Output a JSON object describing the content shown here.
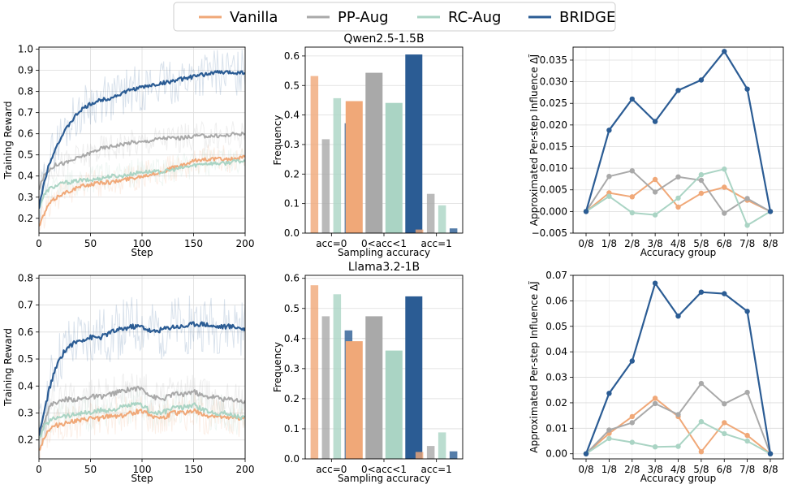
{
  "legend": {
    "entries": [
      {
        "name": "Vanilla",
        "color": "#f0a878"
      },
      {
        "name": "PP-Aug",
        "color": "#a9a9a9"
      },
      {
        "name": "RC-Aug",
        "color": "#aad4c4"
      },
      {
        "name": "BRIDGE",
        "color": "#2b5c94"
      }
    ]
  },
  "chart_data": [
    {
      "id": "reward-qwen",
      "type": "line",
      "title": "",
      "xlabel": "Step",
      "ylabel": "Training Reward",
      "xlim": [
        0,
        200
      ],
      "ylim": [
        0.13,
        1.01
      ],
      "xticks": [
        0,
        50,
        100,
        150,
        200
      ],
      "yticks": [
        0.2,
        0.3,
        0.4,
        0.5,
        0.6,
        0.7,
        0.8,
        0.9,
        1.0
      ],
      "ytick_labels": [
        "0.2",
        "0.3",
        "0.4",
        "0.5",
        "0.6",
        "0.7",
        "0.8",
        "0.9",
        "1.0"
      ],
      "grid": true,
      "x": [
        0,
        5,
        10,
        15,
        20,
        25,
        30,
        40,
        50,
        60,
        70,
        80,
        90,
        100,
        110,
        120,
        130,
        140,
        150,
        160,
        170,
        180,
        190,
        200
      ],
      "series": [
        {
          "name": "Vanilla",
          "values": [
            0.16,
            0.22,
            0.27,
            0.29,
            0.31,
            0.32,
            0.33,
            0.35,
            0.36,
            0.37,
            0.37,
            0.38,
            0.39,
            0.4,
            0.41,
            0.42,
            0.44,
            0.45,
            0.47,
            0.48,
            0.48,
            0.48,
            0.48,
            0.49
          ]
        },
        {
          "name": "PP-Aug",
          "values": [
            0.34,
            0.4,
            0.43,
            0.45,
            0.46,
            0.46,
            0.47,
            0.49,
            0.51,
            0.53,
            0.54,
            0.55,
            0.56,
            0.56,
            0.57,
            0.58,
            0.58,
            0.58,
            0.59,
            0.59,
            0.59,
            0.59,
            0.6,
            0.6
          ]
        },
        {
          "name": "RC-Aug",
          "values": [
            0.25,
            0.31,
            0.34,
            0.35,
            0.36,
            0.37,
            0.37,
            0.38,
            0.38,
            0.39,
            0.4,
            0.4,
            0.41,
            0.42,
            0.42,
            0.42,
            0.43,
            0.44,
            0.45,
            0.46,
            0.46,
            0.46,
            0.47,
            0.47
          ]
        },
        {
          "name": "BRIDGE",
          "values": [
            0.25,
            0.37,
            0.46,
            0.52,
            0.57,
            0.61,
            0.65,
            0.71,
            0.74,
            0.76,
            0.77,
            0.79,
            0.81,
            0.82,
            0.83,
            0.84,
            0.85,
            0.86,
            0.87,
            0.88,
            0.89,
            0.89,
            0.89,
            0.89
          ]
        }
      ]
    },
    {
      "id": "freq-qwen",
      "type": "bar",
      "title": "Qwen2.5-1.5B",
      "xlabel": "Sampling accuracy",
      "ylabel": "Frequency",
      "ylim": [
        0,
        0.63
      ],
      "yticks": [
        0.0,
        0.1,
        0.2,
        0.3,
        0.4,
        0.5,
        0.6
      ],
      "ytick_labels": [
        "0.0",
        "0.1",
        "0.2",
        "0.3",
        "0.4",
        "0.5",
        "0.6"
      ],
      "grid": true,
      "categories": [
        "acc=0",
        "0<acc<1",
        "acc=1"
      ],
      "series": [
        {
          "name": "Vanilla",
          "values": [
            0.532,
            0.447,
            0.012
          ]
        },
        {
          "name": "PP-Aug",
          "values": [
            0.318,
            0.543,
            0.133
          ]
        },
        {
          "name": "RC-Aug",
          "values": [
            0.457,
            0.441,
            0.094
          ]
        },
        {
          "name": "BRIDGE",
          "values": [
            0.372,
            0.605,
            0.016
          ]
        }
      ]
    },
    {
      "id": "influence-qwen",
      "type": "line",
      "title": "",
      "xlabel": "Accuracy group",
      "ylabel": "Approximated Per-step Influence ΔJ̃",
      "ylim": [
        -0.005,
        0.038
      ],
      "yticks": [
        -0.005,
        0.0,
        0.005,
        0.01,
        0.015,
        0.02,
        0.025,
        0.03,
        0.035
      ],
      "ytick_labels": [
        "−0.005",
        "0.000",
        "0.005",
        "0.010",
        "0.015",
        "0.020",
        "0.025",
        "0.030",
        "0.035"
      ],
      "grid": true,
      "categories": [
        "0/8",
        "1/8",
        "2/8",
        "3/8",
        "4/8",
        "5/8",
        "6/8",
        "7/8",
        "8/8"
      ],
      "series": [
        {
          "name": "Vanilla",
          "values": [
            0.0,
            0.0043,
            0.0034,
            0.0074,
            0.001,
            0.0042,
            0.0056,
            0.0026,
            0.0
          ]
        },
        {
          "name": "PP-Aug",
          "values": [
            0.0,
            0.0081,
            0.0094,
            0.0045,
            0.008,
            0.0072,
            -0.0004,
            0.003,
            0.0
          ]
        },
        {
          "name": "RC-Aug",
          "values": [
            0.0,
            0.0035,
            -0.0003,
            -0.0008,
            0.0031,
            0.0085,
            0.0098,
            -0.0032,
            0.0
          ]
        },
        {
          "name": "BRIDGE",
          "values": [
            0.0,
            0.0188,
            0.026,
            0.0208,
            0.028,
            0.0304,
            0.037,
            0.0283,
            0.0
          ]
        }
      ]
    },
    {
      "id": "reward-llama",
      "type": "line",
      "title": "",
      "xlabel": "Step",
      "ylabel": "Training Reward",
      "xlim": [
        0,
        200
      ],
      "ylim": [
        0.13,
        0.81
      ],
      "xticks": [
        0,
        50,
        100,
        150,
        200
      ],
      "yticks": [
        0.2,
        0.3,
        0.4,
        0.5,
        0.6,
        0.7,
        0.8
      ],
      "ytick_labels": [
        "0.2",
        "0.3",
        "0.4",
        "0.5",
        "0.6",
        "0.7",
        "0.8"
      ],
      "grid": true,
      "x": [
        0,
        5,
        10,
        15,
        20,
        25,
        30,
        40,
        50,
        60,
        70,
        80,
        90,
        100,
        110,
        120,
        130,
        140,
        150,
        160,
        170,
        180,
        190,
        200
      ],
      "series": [
        {
          "name": "Vanilla",
          "values": [
            0.16,
            0.21,
            0.24,
            0.25,
            0.26,
            0.26,
            0.27,
            0.27,
            0.28,
            0.28,
            0.29,
            0.29,
            0.3,
            0.31,
            0.29,
            0.28,
            0.3,
            0.3,
            0.31,
            0.29,
            0.29,
            0.28,
            0.28,
            0.28
          ]
        },
        {
          "name": "PP-Aug",
          "values": [
            0.21,
            0.27,
            0.32,
            0.34,
            0.34,
            0.35,
            0.35,
            0.35,
            0.36,
            0.36,
            0.37,
            0.38,
            0.39,
            0.39,
            0.36,
            0.35,
            0.37,
            0.37,
            0.38,
            0.36,
            0.36,
            0.35,
            0.35,
            0.34
          ]
        },
        {
          "name": "RC-Aug",
          "values": [
            0.2,
            0.25,
            0.27,
            0.28,
            0.29,
            0.29,
            0.29,
            0.3,
            0.3,
            0.31,
            0.31,
            0.32,
            0.33,
            0.33,
            0.3,
            0.3,
            0.32,
            0.32,
            0.33,
            0.31,
            0.3,
            0.3,
            0.29,
            0.28
          ]
        },
        {
          "name": "BRIDGE",
          "values": [
            0.22,
            0.3,
            0.39,
            0.45,
            0.5,
            0.53,
            0.55,
            0.57,
            0.58,
            0.58,
            0.6,
            0.61,
            0.62,
            0.62,
            0.6,
            0.61,
            0.62,
            0.62,
            0.63,
            0.63,
            0.62,
            0.62,
            0.62,
            0.61
          ]
        }
      ]
    },
    {
      "id": "freq-llama",
      "type": "bar",
      "title": "Llama3.2-1B",
      "xlabel": "Sampling accuracy",
      "ylabel": "Frequency",
      "ylim": [
        0,
        0.61
      ],
      "yticks": [
        0.0,
        0.1,
        0.2,
        0.3,
        0.4,
        0.5,
        0.6
      ],
      "ytick_labels": [
        "0.0",
        "0.1",
        "0.2",
        "0.3",
        "0.4",
        "0.5",
        "0.6"
      ],
      "grid": true,
      "categories": [
        "acc=0",
        "0<acc<1",
        "acc=1"
      ],
      "series": [
        {
          "name": "Vanilla",
          "values": [
            0.577,
            0.391,
            0.023
          ]
        },
        {
          "name": "PP-Aug",
          "values": [
            0.474,
            0.474,
            0.043
          ]
        },
        {
          "name": "RC-Aug",
          "values": [
            0.547,
            0.36,
            0.088
          ]
        },
        {
          "name": "BRIDGE",
          "values": [
            0.427,
            0.54,
            0.025
          ]
        }
      ]
    },
    {
      "id": "influence-llama",
      "type": "line",
      "title": "",
      "xlabel": "Accuracy group",
      "ylabel": "Approximated Per-step Influence ΔJ̃",
      "ylim": [
        -0.002,
        0.07
      ],
      "yticks": [
        0.0,
        0.01,
        0.02,
        0.03,
        0.04,
        0.05,
        0.06,
        0.07
      ],
      "ytick_labels": [
        "0.00",
        "0.01",
        "0.02",
        "0.03",
        "0.04",
        "0.05",
        "0.06",
        "0.07"
      ],
      "grid": true,
      "categories": [
        "0/8",
        "1/8",
        "2/8",
        "3/8",
        "4/8",
        "5/8",
        "6/8",
        "7/8",
        "8/8"
      ],
      "series": [
        {
          "name": "Vanilla",
          "values": [
            0.0,
            0.008,
            0.0146,
            0.0218,
            0.0146,
            0.0008,
            0.0122,
            0.0072,
            0.0
          ]
        },
        {
          "name": "PP-Aug",
          "values": [
            0.0,
            0.0093,
            0.0122,
            0.0197,
            0.0154,
            0.0276,
            0.0196,
            0.0241,
            0.0
          ]
        },
        {
          "name": "RC-Aug",
          "values": [
            0.0,
            0.006,
            0.0045,
            0.0027,
            0.0029,
            0.0126,
            0.0079,
            0.005,
            0.0
          ]
        },
        {
          "name": "BRIDGE",
          "values": [
            0.0,
            0.0237,
            0.0364,
            0.0669,
            0.054,
            0.0634,
            0.0628,
            0.0559,
            0.0
          ]
        }
      ]
    }
  ]
}
